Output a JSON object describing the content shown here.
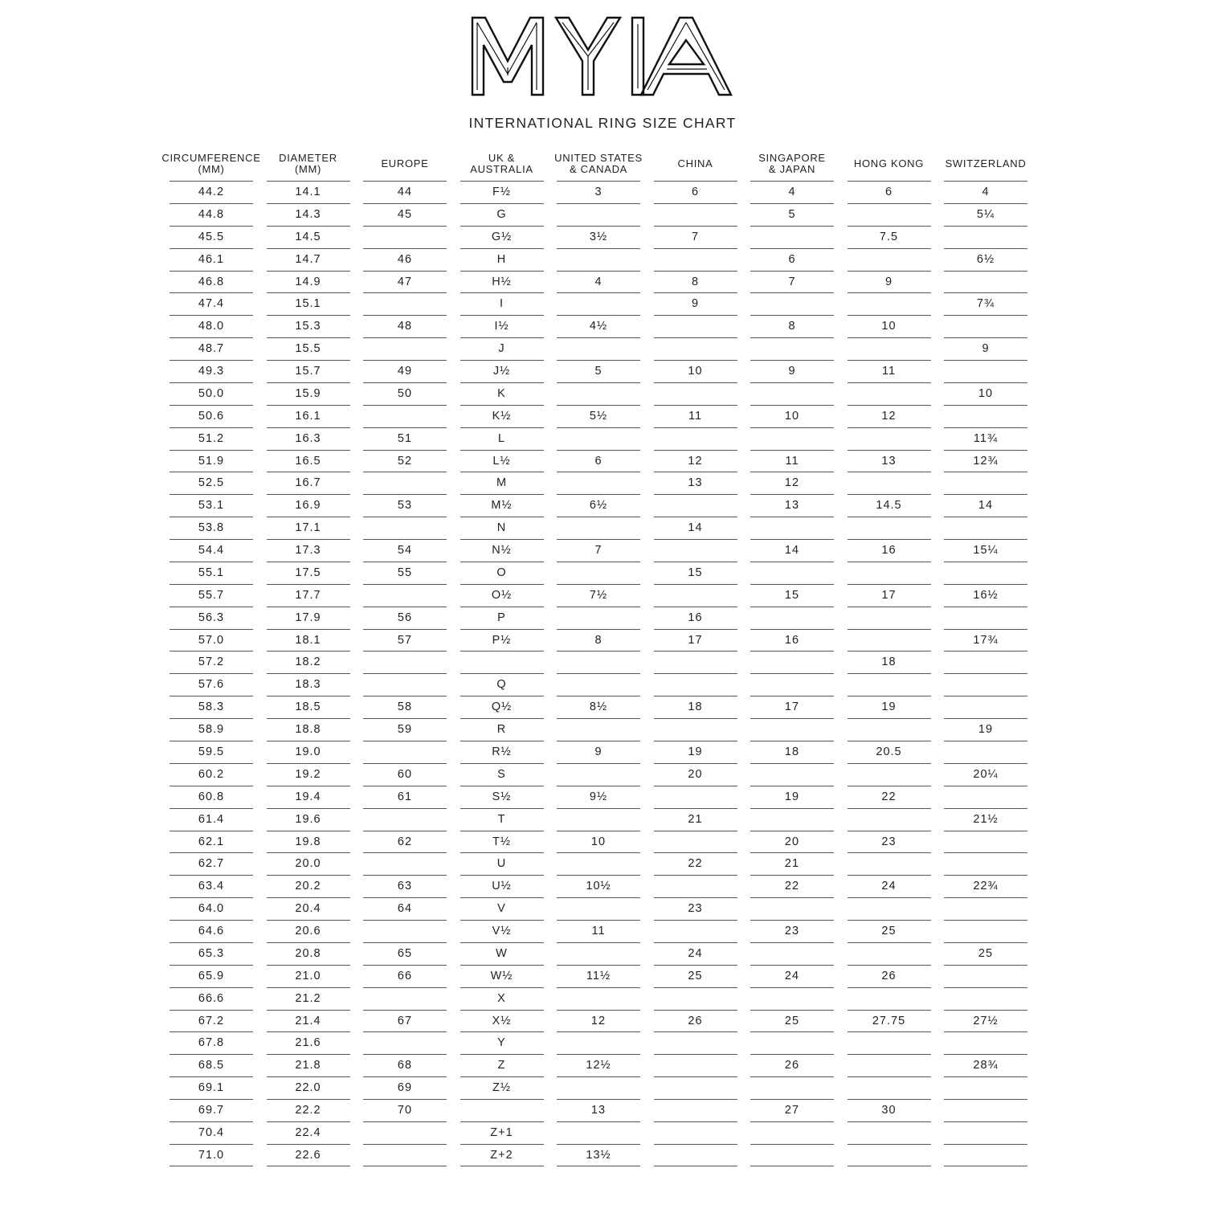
{
  "logo": {
    "text": "MYIA"
  },
  "title": "INTERNATIONAL RING SIZE CHART",
  "table": {
    "headers": [
      [
        "CIRCUMFERENCE",
        "(MM)"
      ],
      [
        "DIAMETER",
        "(MM)"
      ],
      [
        "EUROPE"
      ],
      [
        "UK &",
        "AUSTRALIA"
      ],
      [
        "UNITED STATES",
        "& CANADA"
      ],
      [
        "CHINA"
      ],
      [
        "SINGAPORE",
        "& JAPAN"
      ],
      [
        "HONG KONG"
      ],
      [
        "SWITZERLAND"
      ]
    ],
    "rows": [
      [
        "44.2",
        "14.1",
        "44",
        "F½",
        "3",
        "6",
        "4",
        "6",
        "4"
      ],
      [
        "44.8",
        "14.3",
        "45",
        "G",
        "",
        "",
        "5",
        "",
        "5¼"
      ],
      [
        "45.5",
        "14.5",
        "",
        "G½",
        "3½",
        "7",
        "",
        "7.5",
        ""
      ],
      [
        "46.1",
        "14.7",
        "46",
        "H",
        "",
        "",
        "6",
        "",
        "6½"
      ],
      [
        "46.8",
        "14.9",
        "47",
        "H½",
        "4",
        "8",
        "7",
        "9",
        ""
      ],
      [
        "47.4",
        "15.1",
        "",
        "I",
        "",
        "9",
        "",
        "",
        "7¾"
      ],
      [
        "48.0",
        "15.3",
        "48",
        "I½",
        "4½",
        "",
        "8",
        "10",
        ""
      ],
      [
        "48.7",
        "15.5",
        "",
        "J",
        "",
        "",
        "",
        "",
        "9"
      ],
      [
        "49.3",
        "15.7",
        "49",
        "J½",
        "5",
        "10",
        "9",
        "11",
        ""
      ],
      [
        "50.0",
        "15.9",
        "50",
        "K",
        "",
        "",
        "",
        "",
        "10"
      ],
      [
        "50.6",
        "16.1",
        "",
        "K½",
        "5½",
        "11",
        "10",
        "12",
        ""
      ],
      [
        "51.2",
        "16.3",
        "51",
        "L",
        "",
        "",
        "",
        "",
        "11¾"
      ],
      [
        "51.9",
        "16.5",
        "52",
        "L½",
        "6",
        "12",
        "11",
        "13",
        "12¾"
      ],
      [
        "52.5",
        "16.7",
        "",
        "M",
        "",
        "13",
        "12",
        "",
        ""
      ],
      [
        "53.1",
        "16.9",
        "53",
        "M½",
        "6½",
        "",
        "13",
        "14.5",
        "14"
      ],
      [
        "53.8",
        "17.1",
        "",
        "N",
        "",
        "14",
        "",
        "",
        ""
      ],
      [
        "54.4",
        "17.3",
        "54",
        "N½",
        "7",
        "",
        "14",
        "16",
        "15¼"
      ],
      [
        "55.1",
        "17.5",
        "55",
        "O",
        "",
        "15",
        "",
        "",
        ""
      ],
      [
        "55.7",
        "17.7",
        "",
        "O½",
        "7½",
        "",
        "15",
        "17",
        "16½"
      ],
      [
        "56.3",
        "17.9",
        "56",
        "P",
        "",
        "16",
        "",
        "",
        ""
      ],
      [
        "57.0",
        "18.1",
        "57",
        "P½",
        "8",
        "17",
        "16",
        "",
        "17¾"
      ],
      [
        "57.2",
        "18.2",
        "",
        "",
        "",
        "",
        "",
        "18",
        ""
      ],
      [
        "57.6",
        "18.3",
        "",
        "Q",
        "",
        "",
        "",
        "",
        ""
      ],
      [
        "58.3",
        "18.5",
        "58",
        "Q½",
        "8½",
        "18",
        "17",
        "19",
        ""
      ],
      [
        "58.9",
        "18.8",
        "59",
        "R",
        "",
        "",
        "",
        "",
        "19"
      ],
      [
        "59.5",
        "19.0",
        "",
        "R½",
        "9",
        "19",
        "18",
        "20.5",
        ""
      ],
      [
        "60.2",
        "19.2",
        "60",
        "S",
        "",
        "20",
        "",
        "",
        "20¼"
      ],
      [
        "60.8",
        "19.4",
        "61",
        "S½",
        "9½",
        "",
        "19",
        "22",
        ""
      ],
      [
        "61.4",
        "19.6",
        "",
        "T",
        "",
        "21",
        "",
        "",
        "21½"
      ],
      [
        "62.1",
        "19.8",
        "62",
        "T½",
        "10",
        "",
        "20",
        "23",
        ""
      ],
      [
        "62.7",
        "20.0",
        "",
        "U",
        "",
        "22",
        "21",
        "",
        ""
      ],
      [
        "63.4",
        "20.2",
        "63",
        "U½",
        "10½",
        "",
        "22",
        "24",
        "22¾"
      ],
      [
        "64.0",
        "20.4",
        "64",
        "V",
        "",
        "23",
        "",
        "",
        ""
      ],
      [
        "64.6",
        "20.6",
        "",
        "V½",
        "11",
        "",
        "23",
        "25",
        ""
      ],
      [
        "65.3",
        "20.8",
        "65",
        "W",
        "",
        "24",
        "",
        "",
        "25"
      ],
      [
        "65.9",
        "21.0",
        "66",
        "W½",
        "11½",
        "25",
        "24",
        "26",
        ""
      ],
      [
        "66.6",
        "21.2",
        "",
        "X",
        "",
        "",
        "",
        "",
        ""
      ],
      [
        "67.2",
        "21.4",
        "67",
        "X½",
        "12",
        "26",
        "25",
        "27.75",
        "27½"
      ],
      [
        "67.8",
        "21.6",
        "",
        "Y",
        "",
        "",
        "",
        "",
        ""
      ],
      [
        "68.5",
        "21.8",
        "68",
        "Z",
        "12½",
        "",
        "26",
        "",
        "28¾"
      ],
      [
        "69.1",
        "22.0",
        "69",
        "Z½",
        "",
        "",
        "",
        "",
        ""
      ],
      [
        "69.7",
        "22.2",
        "70",
        "",
        "13",
        "",
        "27",
        "30",
        ""
      ],
      [
        "70.4",
        "22.4",
        "",
        "Z+1",
        "",
        "",
        "",
        "",
        ""
      ],
      [
        "71.0",
        "22.6",
        "",
        "Z+2",
        "13½",
        "",
        "",
        "",
        ""
      ]
    ]
  }
}
